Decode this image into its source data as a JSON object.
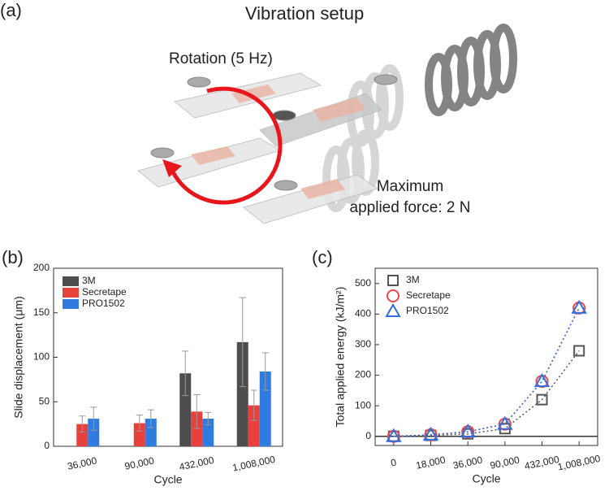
{
  "figure": {
    "panel_label": "(a)",
    "title": "Vibration setup",
    "rotation_label": "Rotation (5 Hz)",
    "force_label_line1": "Maximum",
    "force_label_line2": "applied force: 2 N"
  },
  "chart_data": [
    {
      "type": "bar",
      "panel_label": "(b)",
      "xlabel": "Cycle",
      "ylabel": "Slide displacement (μm)",
      "categories": [
        "36,000",
        "90,000",
        "432,000",
        "1,008,000"
      ],
      "series": [
        {
          "name": "3M",
          "color": "#4d4d4d",
          "values": [
            null,
            null,
            82,
            117
          ],
          "errors": [
            null,
            null,
            25,
            50
          ]
        },
        {
          "name": "Secretape",
          "color": "#e8403d",
          "values": [
            25,
            26,
            39,
            46
          ],
          "errors": [
            9,
            9,
            19,
            17
          ]
        },
        {
          "name": "PRO1502",
          "color": "#2f7be0",
          "values": [
            31,
            31,
            31,
            84
          ],
          "errors": [
            13,
            10,
            7,
            21
          ]
        }
      ],
      "ylim": [
        0,
        200
      ],
      "yticks": [
        0,
        50,
        100,
        150,
        200
      ],
      "legend": "upper left"
    },
    {
      "type": "line",
      "panel_label": "(c)",
      "xlabel": "Cycle",
      "ylabel": "Total applied energy (kJ/m²)",
      "categories": [
        "0",
        "18,000",
        "36,000",
        "90,000",
        "432,000",
        "1,008,000"
      ],
      "series": [
        {
          "name": "3M",
          "color": "#555555",
          "marker": "square",
          "values": [
            0,
            3,
            8,
            25,
            120,
            280
          ]
        },
        {
          "name": "Secretape",
          "color": "#f04545",
          "marker": "circle",
          "values": [
            0,
            5,
            15,
            40,
            180,
            420
          ]
        },
        {
          "name": "PRO1502",
          "color": "#2f6fe0",
          "marker": "triangle",
          "values": [
            0,
            5,
            15,
            40,
            180,
            420
          ]
        }
      ],
      "ylim": [
        -30,
        550
      ],
      "yticks": [
        0,
        100,
        200,
        300,
        400,
        500
      ],
      "reference_line": 0,
      "line_style": "dotted",
      "legend": "upper left"
    }
  ]
}
